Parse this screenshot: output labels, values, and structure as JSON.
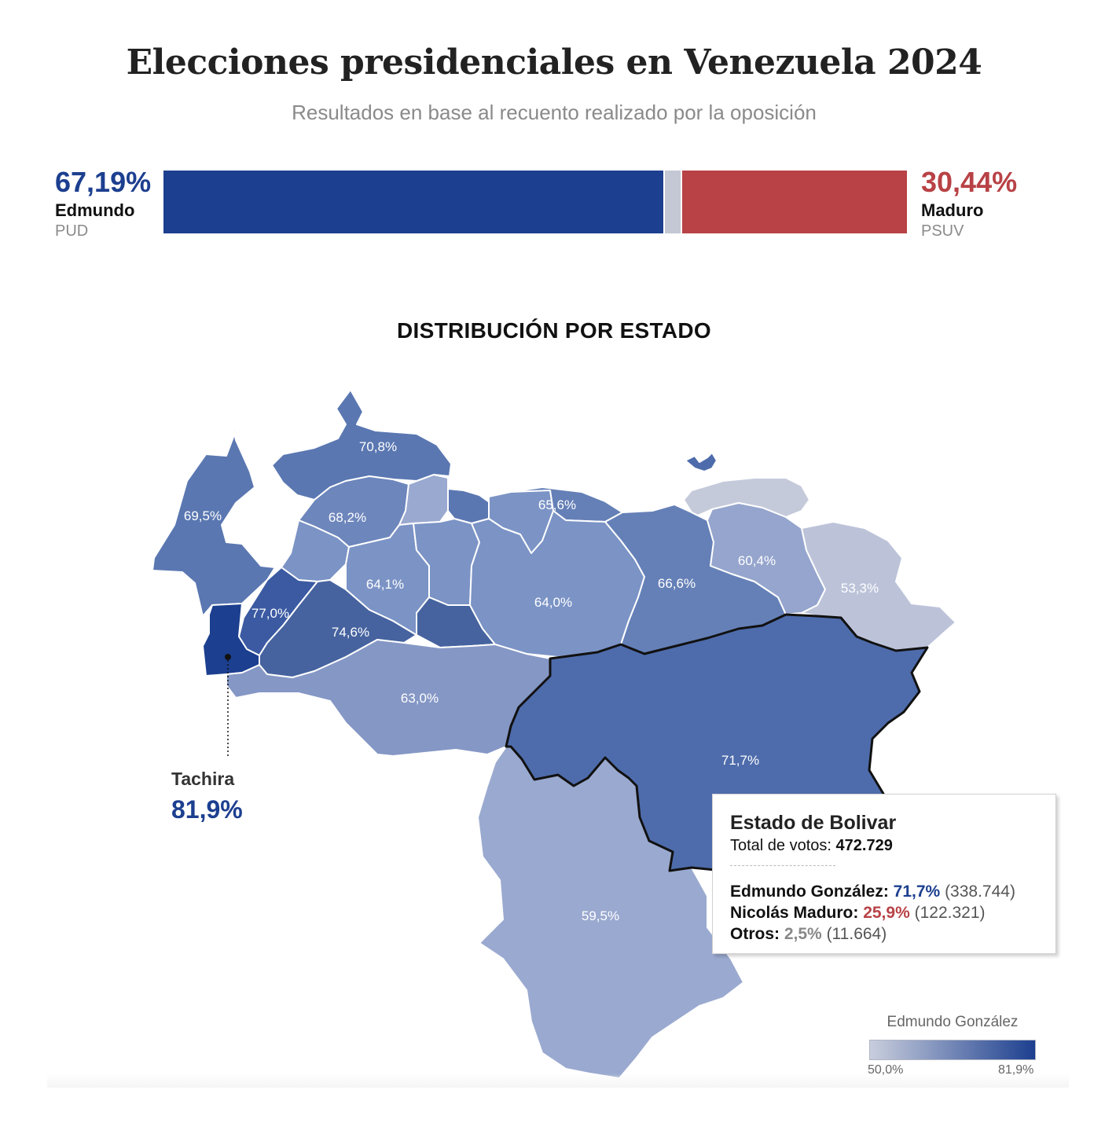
{
  "header": {
    "title": "Elecciones presidenciales en Venezuela 2024",
    "subtitle": "Resultados en base al recuento realizado por la oposición"
  },
  "results": {
    "left": {
      "pct": "67,19%",
      "name": "Edmundo",
      "party": "PUD",
      "color": "#1c3f8f",
      "share": 67.19
    },
    "right": {
      "pct": "30,44%",
      "name": "Maduro",
      "party": "PSUV",
      "color": "#b84246",
      "share": 30.44
    },
    "other_color": "#c4c8d4"
  },
  "map": {
    "section_title": "DISTRIBUCIÓN POR ESTADO",
    "states": [
      {
        "id": "falcon",
        "value": "70,8%"
      },
      {
        "id": "zulia",
        "value": "69,5%"
      },
      {
        "id": "lara",
        "value": "68,2%"
      },
      {
        "id": "miranda",
        "value": "65,6%"
      },
      {
        "id": "monagas",
        "value": "60,4%"
      },
      {
        "id": "delta-amacuro",
        "value": "53,3%"
      },
      {
        "id": "portuguesa",
        "value": "64,1%"
      },
      {
        "id": "guarico",
        "value": "64,0%"
      },
      {
        "id": "anzoategui",
        "value": "66,6%"
      },
      {
        "id": "merida",
        "value": "77,0%"
      },
      {
        "id": "barinas",
        "value": "74,6%"
      },
      {
        "id": "apure",
        "value": "63,0%"
      },
      {
        "id": "bolivar",
        "value": "71,7%"
      },
      {
        "id": "amazonas",
        "value": "59,5%"
      }
    ],
    "callout": {
      "name": "Tachira",
      "value": "81,9%"
    }
  },
  "tooltip": {
    "title": "Estado de Bolivar",
    "total_label": "Total de votos:",
    "total_value": "472.729",
    "rows": [
      {
        "label": "Edmundo González:",
        "pct": "71,7%",
        "count": "(338.744)"
      },
      {
        "label": "Nicolás Maduro:",
        "pct": "25,9%",
        "count": "(122.321)"
      },
      {
        "label": "Otros:",
        "pct": "2,5%",
        "count": "(11.664)"
      }
    ]
  },
  "legend": {
    "title": "Edmundo González",
    "min": "50,0%",
    "max": "81,9%",
    "color_min": "#c9cedd",
    "color_max": "#1c3f8f"
  }
}
